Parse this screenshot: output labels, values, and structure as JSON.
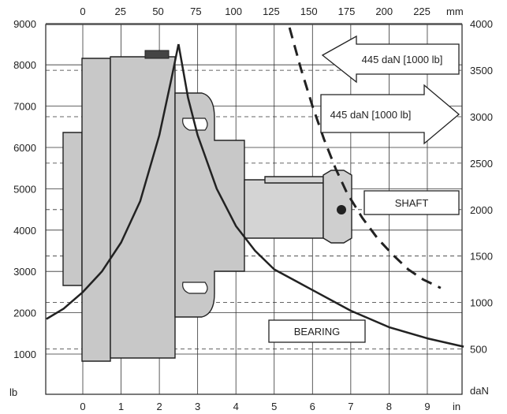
{
  "chart_data": {
    "type": "line",
    "title": "",
    "axes": {
      "left": {
        "unit": "lb",
        "range": [
          1000,
          9000
        ],
        "ticks": [
          1000,
          2000,
          3000,
          4000,
          5000,
          6000,
          7000,
          8000,
          9000
        ],
        "tick_labels": [
          "1000",
          "2000",
          "3000",
          "4000",
          "5000",
          "6000",
          "7000",
          "8000",
          "9000"
        ]
      },
      "right": {
        "unit": "daN",
        "range": [
          500,
          4000
        ],
        "ticks": [
          500,
          1000,
          1500,
          2000,
          2500,
          3000,
          3500,
          4000
        ],
        "tick_labels": [
          "500",
          "1000",
          "1500",
          "2000",
          "2500",
          "3000",
          "3500",
          "4000"
        ]
      },
      "bottom": {
        "unit": "in",
        "range": [
          0,
          9
        ],
        "ticks": [
          0,
          1,
          2,
          3,
          4,
          5,
          6,
          7,
          8,
          9
        ],
        "tick_labels": [
          "0",
          "1",
          "2",
          "3",
          "4",
          "5",
          "6",
          "7",
          "8",
          "9"
        ]
      },
      "top": {
        "unit": "mm",
        "range": [
          0,
          225
        ],
        "ticks": [
          0,
          25,
          50,
          75,
          100,
          125,
          150,
          175,
          200,
          225
        ],
        "tick_labels": [
          "0",
          "25",
          "50",
          "75",
          "100",
          "125",
          "150",
          "175",
          "200",
          "225"
        ]
      }
    },
    "grid": true,
    "series": [
      {
        "style": "solid",
        "x_in": [
          -0.95,
          -0.5,
          0,
          0.5,
          1.0,
          1.5,
          2.0,
          2.3,
          2.5
        ],
        "y_lb": [
          1850,
          2100,
          2500,
          3000,
          3700,
          4700,
          6300,
          7600,
          8500
        ]
      },
      {
        "style": "solid",
        "x_in": [
          2.5,
          2.75,
          3.0,
          3.5,
          4.0,
          4.5,
          5.0,
          6.0,
          7.0,
          8.0,
          9.0,
          9.95
        ],
        "y_lb": [
          8500,
          7200,
          6300,
          5000,
          4100,
          3500,
          3050,
          2550,
          2050,
          1650,
          1380,
          1180
        ]
      },
      {
        "style": "dashed",
        "x_in": [
          5.4,
          5.7,
          6.0,
          6.3,
          6.6,
          6.9,
          7.3,
          7.7,
          8.1,
          8.5,
          8.9,
          9.35
        ],
        "y_lb": [
          8900,
          7900,
          7000,
          6200,
          5500,
          4900,
          4300,
          3800,
          3400,
          3050,
          2800,
          2600
        ]
      }
    ],
    "annotations": [
      "445 daN [1000 lb]",
      "445 daN [1000 lb]",
      "SHAFT",
      "BEARING"
    ]
  }
}
